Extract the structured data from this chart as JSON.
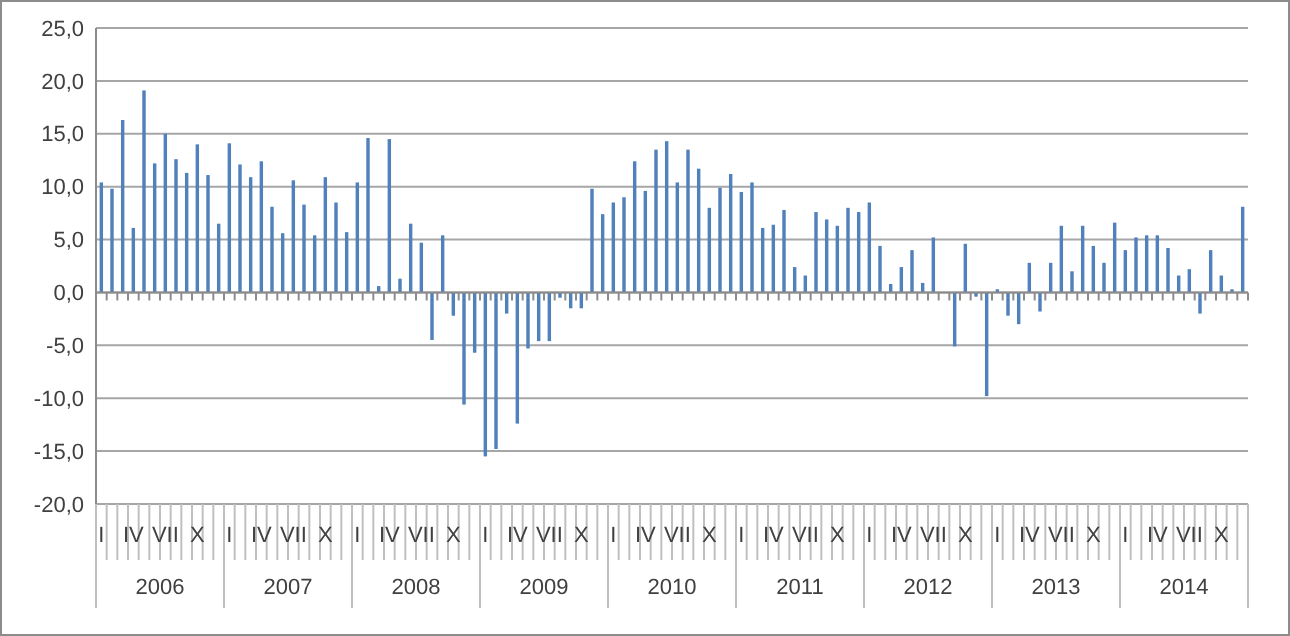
{
  "chart_data": {
    "type": "bar",
    "categories": [
      "I",
      null,
      null,
      "IV",
      null,
      null,
      "VII",
      null,
      null,
      "X",
      null,
      null,
      "I",
      null,
      null,
      "IV",
      null,
      null,
      "VII",
      null,
      null,
      "X",
      null,
      null,
      "I",
      null,
      null,
      "IV",
      null,
      null,
      "VII",
      null,
      null,
      "X",
      null,
      null,
      "I",
      null,
      null,
      "IV",
      null,
      null,
      "VII",
      null,
      null,
      "X",
      null,
      null,
      "I",
      null,
      null,
      "IV",
      null,
      null,
      "VII",
      null,
      null,
      "X",
      null,
      null,
      "I",
      null,
      null,
      "IV",
      null,
      null,
      "VII",
      null,
      null,
      "X",
      null,
      null,
      "I",
      null,
      null,
      "IV",
      null,
      null,
      "VII",
      null,
      null,
      "X",
      null,
      null,
      "I",
      null,
      null,
      "IV",
      null,
      null,
      "VII",
      null,
      null,
      "X",
      null,
      null,
      "I",
      null,
      null,
      "IV",
      null,
      null,
      "VII",
      null,
      null,
      "X",
      null,
      null
    ],
    "series": [
      {
        "color": "#4f81bd",
        "values": [
          10.4,
          9.8,
          16.3,
          6.1,
          19.1,
          12.2,
          15.0,
          12.6,
          11.3,
          14.0,
          11.1,
          6.5,
          14.1,
          12.1,
          10.9,
          12.4,
          8.1,
          5.6,
          10.6,
          8.3,
          5.4,
          10.9,
          8.5,
          5.7,
          10.4,
          14.6,
          0.6,
          14.5,
          1.3,
          6.5,
          4.7,
          -4.5,
          5.4,
          -2.2,
          -10.6,
          -5.7,
          -15.5,
          -14.8,
          -2.0,
          -12.4,
          -5.3,
          -4.6,
          -4.6,
          -0.5,
          -1.5,
          -1.5,
          9.8,
          7.4,
          8.5,
          9.0,
          12.4,
          9.6,
          13.5,
          14.3,
          10.4,
          13.5,
          11.7,
          8.0,
          9.9,
          11.2,
          9.5,
          10.4,
          6.1,
          6.4,
          7.8,
          2.4,
          1.6,
          7.6,
          6.9,
          6.3,
          8.0,
          7.6,
          8.5,
          4.4,
          0.8,
          2.4,
          4.0,
          0.9,
          5.2,
          0,
          -5.1,
          4.6,
          -0.4,
          -9.8,
          0.3,
          -2.2,
          -3.0,
          2.8,
          -1.8,
          2.8,
          6.3,
          2.0,
          6.3,
          4.4,
          2.8,
          6.6,
          4.0,
          5.2,
          5.4,
          5.4,
          4.2,
          1.6,
          2.2,
          -2.0,
          4.0,
          1.6,
          0.3,
          8.1
        ]
      }
    ],
    "annotations": [
      "2006",
      "2007",
      "2008",
      "2009",
      "2010",
      "2011",
      "2012",
      "2013",
      "2014"
    ],
    "ylim": [
      -20,
      25
    ],
    "yticks": [
      {
        "value": -20,
        "label": "-20,0"
      },
      {
        "value": -15,
        "label": "-15,0"
      },
      {
        "value": -10,
        "label": "-10,0"
      },
      {
        "value": -5,
        "label": "-5,0"
      },
      {
        "value": 0,
        "label": "0,0"
      },
      {
        "value": 5,
        "label": "5,0"
      },
      {
        "value": 10,
        "label": "10,0"
      },
      {
        "value": 15,
        "label": "15,0"
      },
      {
        "value": 20,
        "label": "20,0"
      },
      {
        "value": 25,
        "label": "25,0"
      }
    ],
    "grid": "y"
  }
}
